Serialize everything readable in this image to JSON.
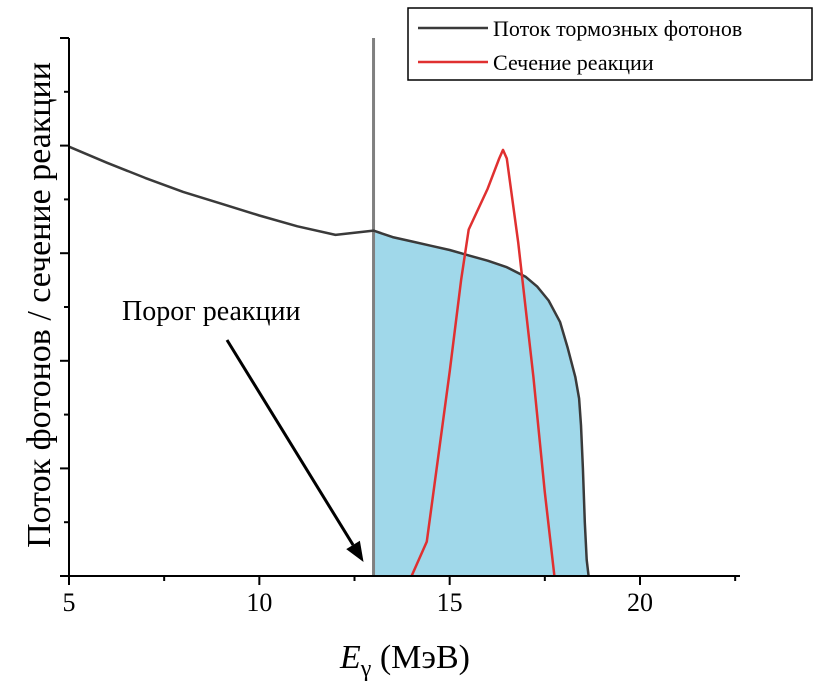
{
  "chart_data": {
    "type": "line",
    "xlabel_main": "E",
    "xlabel_sub": "γ",
    "xlabel_unit": " (МэВ)",
    "ylabel": "Поток фотонов / сечение реакции",
    "xlim": [
      5,
      22.5
    ],
    "ylim": [
      0,
      5
    ],
    "xticks": [
      5,
      10,
      15,
      20
    ],
    "grid": false,
    "legend_position": "top-right",
    "series": [
      {
        "name": "Поток тормозных фотонов",
        "color": "#3a3a3a",
        "x": [
          5,
          6,
          7,
          8,
          9,
          10,
          11,
          12,
          13,
          13.5,
          14,
          14.5,
          15,
          15.5,
          16,
          16.5,
          17,
          17.3,
          17.6,
          17.9,
          18.1,
          18.3,
          18.4,
          18.45,
          18.5,
          18.55,
          18.6,
          18.65
        ],
        "y": [
          3.99,
          3.84,
          3.7,
          3.57,
          3.46,
          3.35,
          3.25,
          3.17,
          3.21,
          3.15,
          3.11,
          3.07,
          3.03,
          2.98,
          2.93,
          2.87,
          2.78,
          2.69,
          2.56,
          2.36,
          2.12,
          1.85,
          1.65,
          1.4,
          1.0,
          0.5,
          0.15,
          0.0
        ]
      },
      {
        "name": "Сечение реакции",
        "color": "#e03030",
        "x": [
          14.0,
          14.4,
          15.0,
          15.3,
          15.5,
          16.0,
          16.3,
          16.4,
          16.5,
          16.8,
          17.2,
          17.5,
          17.75
        ],
        "y": [
          0.0,
          0.32,
          1.9,
          2.75,
          3.22,
          3.6,
          3.88,
          3.96,
          3.88,
          3.1,
          1.85,
          0.78,
          0.0
        ]
      }
    ],
    "shaded_region": {
      "x_from": 13,
      "x_to": 18.65,
      "under_series": 0,
      "color": "#a0d8ea"
    },
    "threshold_line": {
      "x": 13,
      "color": "#808080"
    },
    "annotations": [
      {
        "text": "Порог реакции",
        "arrow_to_x": 13
      }
    ]
  }
}
